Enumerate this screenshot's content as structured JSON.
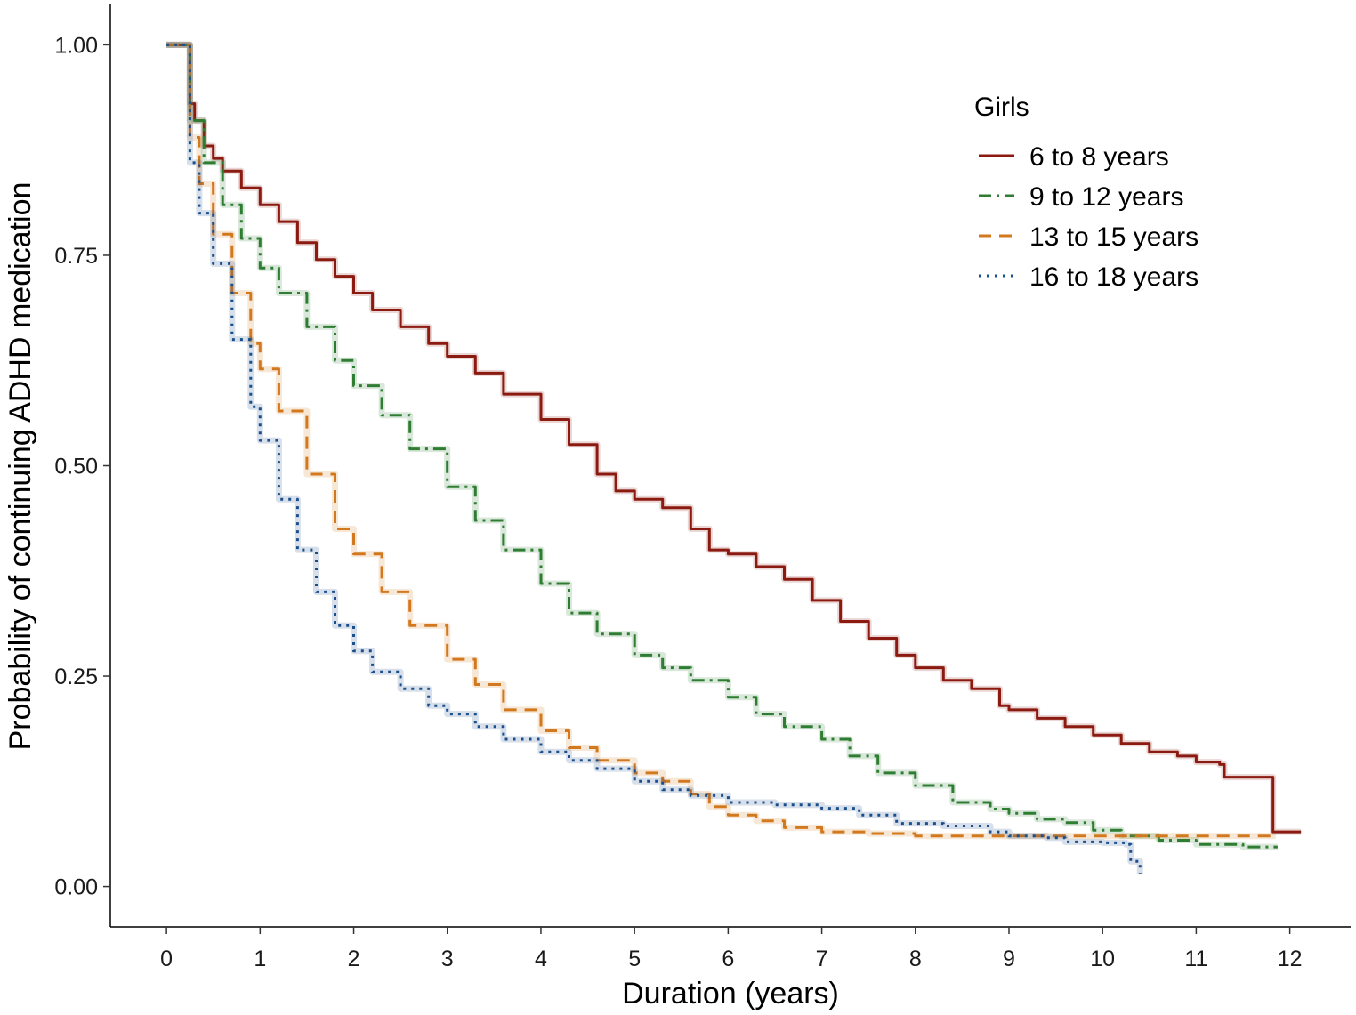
{
  "chart_data": {
    "type": "line",
    "title": "",
    "xlabel": "Duration (years)",
    "ylabel": "Probability of continuing ADHD medication",
    "xlim": [
      -0.6,
      12.65
    ],
    "ylim": [
      -0.048,
      1.048
    ],
    "x_ticks": [
      0,
      1,
      2,
      3,
      4,
      5,
      6,
      7,
      8,
      9,
      10,
      11,
      12
    ],
    "x_tick_labels": [
      "0",
      "1",
      "2",
      "3",
      "4",
      "5",
      "6",
      "7",
      "8",
      "9",
      "10",
      "11",
      "12"
    ],
    "y_ticks": [
      0,
      0.25,
      0.5,
      0.75,
      1.0
    ],
    "y_tick_labels": [
      "0.00",
      "0.25",
      "0.50",
      "0.75",
      "1.00"
    ],
    "grid": false,
    "legend": {
      "title": "Girls",
      "position": "top-right"
    },
    "series": [
      {
        "name": "6 to 8 years",
        "color": "#8b1a10",
        "dash": "solid",
        "x": [
          0,
          0.25,
          0.25,
          0.3,
          0.4,
          0.5,
          0.6,
          0.8,
          1.0,
          1.2,
          1.4,
          1.6,
          1.8,
          2.0,
          2.2,
          2.5,
          2.8,
          3.0,
          3.3,
          3.6,
          4.0,
          4.3,
          4.6,
          4.8,
          5.0,
          5.3,
          5.6,
          5.8,
          6.0,
          6.3,
          6.6,
          6.9,
          7.2,
          7.5,
          7.8,
          8.0,
          8.3,
          8.6,
          8.9,
          9.0,
          9.3,
          9.6,
          9.9,
          10.2,
          10.5,
          10.8,
          11.0,
          11.25,
          11.3,
          11.8,
          11.82,
          12.12
        ],
        "y": [
          1.0,
          1.0,
          0.93,
          0.91,
          0.88,
          0.865,
          0.85,
          0.83,
          0.81,
          0.79,
          0.765,
          0.745,
          0.725,
          0.705,
          0.685,
          0.665,
          0.645,
          0.63,
          0.61,
          0.585,
          0.555,
          0.525,
          0.49,
          0.47,
          0.46,
          0.45,
          0.425,
          0.4,
          0.395,
          0.38,
          0.365,
          0.34,
          0.315,
          0.295,
          0.275,
          0.26,
          0.245,
          0.235,
          0.215,
          0.21,
          0.2,
          0.19,
          0.18,
          0.17,
          0.16,
          0.155,
          0.148,
          0.145,
          0.13,
          0.13,
          0.065,
          0.065
        ]
      },
      {
        "name": "9 to 12 years",
        "color": "#2e7d32",
        "dash": "dashdot",
        "x": [
          0,
          0.25,
          0.25,
          0.4,
          0.6,
          0.8,
          1.0,
          1.2,
          1.5,
          1.8,
          2.0,
          2.3,
          2.6,
          3.0,
          3.3,
          3.6,
          4.0,
          4.3,
          4.6,
          5.0,
          5.3,
          5.6,
          6.0,
          6.3,
          6.6,
          7.0,
          7.3,
          7.6,
          8.0,
          8.4,
          8.8,
          9.0,
          9.3,
          9.6,
          9.9,
          10.2,
          10.6,
          11.0,
          11.5,
          11.87
        ],
        "y": [
          1.0,
          1.0,
          0.91,
          0.86,
          0.81,
          0.77,
          0.735,
          0.705,
          0.665,
          0.625,
          0.595,
          0.56,
          0.52,
          0.475,
          0.435,
          0.4,
          0.36,
          0.325,
          0.3,
          0.275,
          0.26,
          0.245,
          0.225,
          0.205,
          0.19,
          0.175,
          0.155,
          0.135,
          0.12,
          0.1,
          0.092,
          0.087,
          0.08,
          0.076,
          0.067,
          0.06,
          0.055,
          0.05,
          0.047,
          0.047
        ]
      },
      {
        "name": "13 to 15 years",
        "color": "#d2781e",
        "dash": "dashed",
        "x": [
          0,
          0.25,
          0.25,
          0.35,
          0.5,
          0.7,
          0.9,
          1.0,
          1.2,
          1.5,
          1.8,
          2.0,
          2.3,
          2.6,
          3.0,
          3.3,
          3.6,
          4.0,
          4.3,
          4.6,
          5.0,
          5.3,
          5.6,
          5.8,
          6.0,
          6.3,
          6.6,
          7.0,
          7.5,
          8.0,
          9.0,
          10.0,
          11.0,
          11.85
        ],
        "y": [
          1.0,
          1.0,
          0.89,
          0.835,
          0.775,
          0.705,
          0.645,
          0.615,
          0.565,
          0.49,
          0.425,
          0.395,
          0.35,
          0.31,
          0.27,
          0.24,
          0.21,
          0.185,
          0.165,
          0.15,
          0.135,
          0.125,
          0.11,
          0.095,
          0.085,
          0.078,
          0.07,
          0.065,
          0.063,
          0.06,
          0.06,
          0.06,
          0.06,
          0.06
        ]
      },
      {
        "name": "16 to 18 years",
        "color": "#1a4f8b",
        "dash": "dotted",
        "x": [
          0,
          0.25,
          0.25,
          0.35,
          0.5,
          0.7,
          0.9,
          1.0,
          1.2,
          1.4,
          1.6,
          1.8,
          2.0,
          2.2,
          2.5,
          2.8,
          3.0,
          3.3,
          3.6,
          4.0,
          4.3,
          4.6,
          5.0,
          5.3,
          5.6,
          6.0,
          6.5,
          7.0,
          7.4,
          7.8,
          8.3,
          8.8,
          9.0,
          9.4,
          9.6,
          10.0,
          10.25,
          10.3,
          10.4
        ],
        "y": [
          1.0,
          1.0,
          0.86,
          0.8,
          0.74,
          0.65,
          0.57,
          0.53,
          0.46,
          0.4,
          0.35,
          0.31,
          0.28,
          0.255,
          0.235,
          0.215,
          0.205,
          0.19,
          0.175,
          0.16,
          0.15,
          0.14,
          0.125,
          0.115,
          0.108,
          0.1,
          0.097,
          0.093,
          0.085,
          0.075,
          0.072,
          0.065,
          0.06,
          0.058,
          0.053,
          0.052,
          0.05,
          0.03,
          0.015
        ]
      }
    ]
  }
}
